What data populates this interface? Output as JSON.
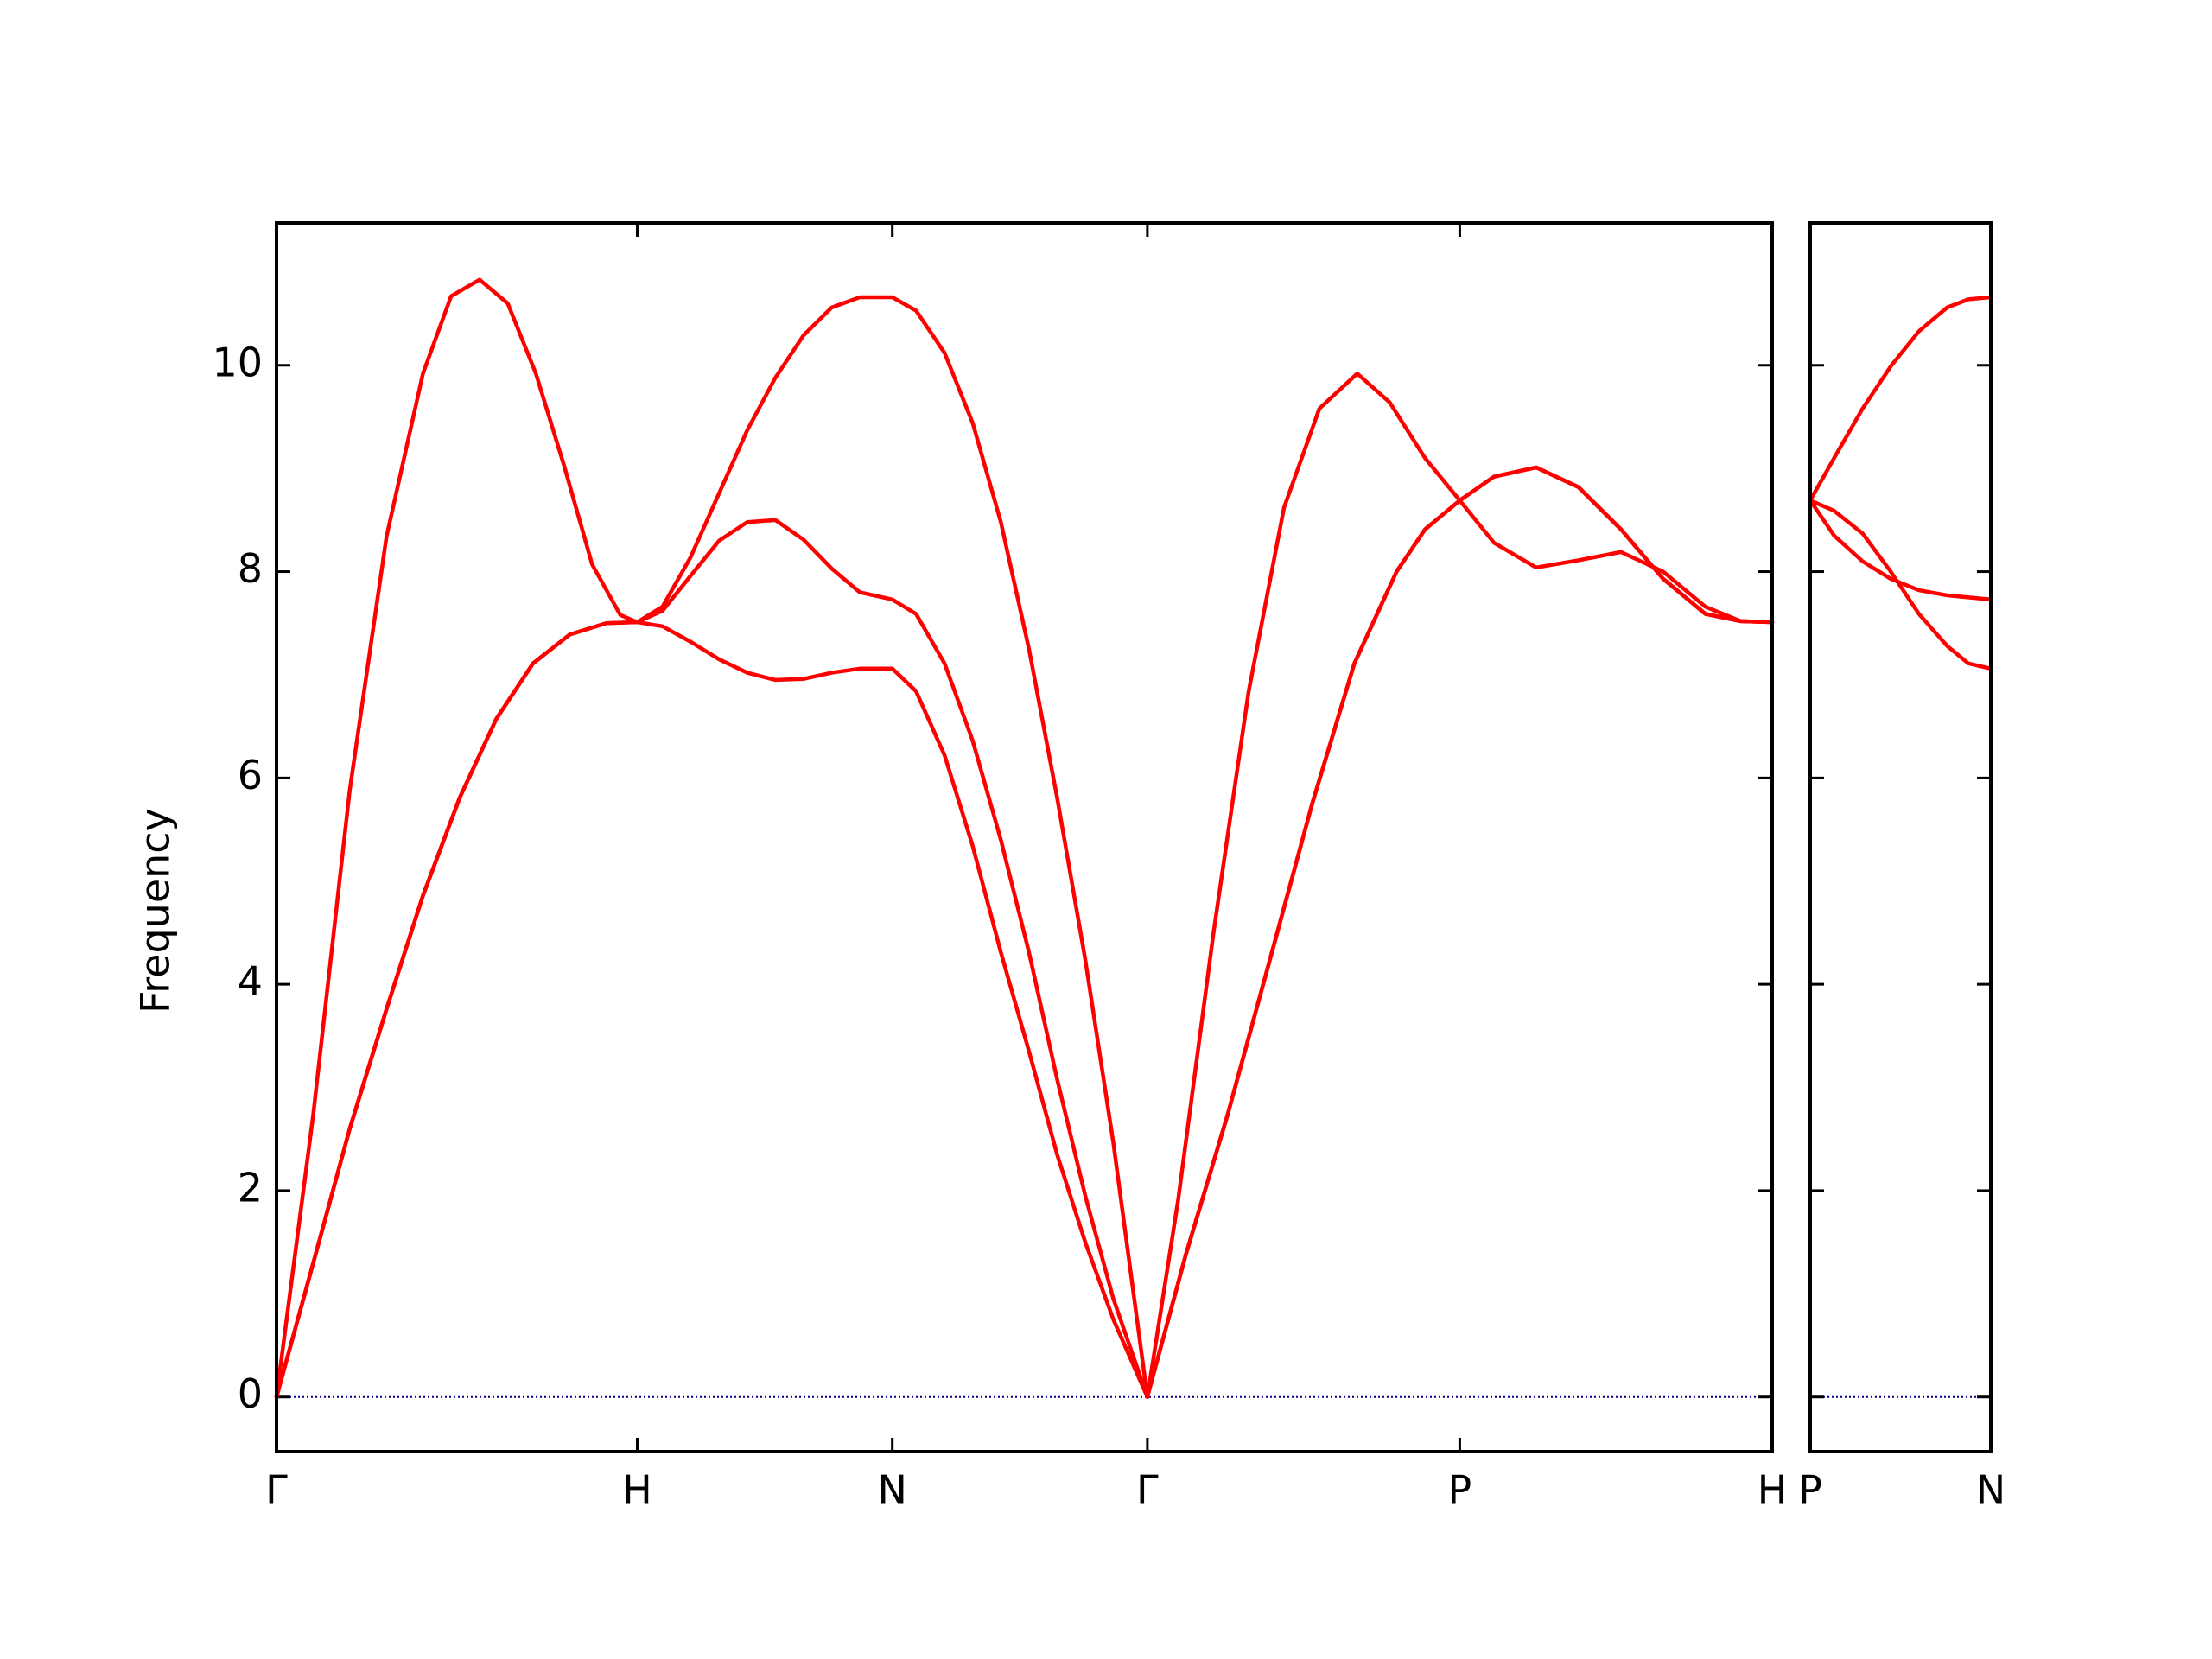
{
  "chart_data": [
    {
      "type": "line",
      "ylabel": "Frequency",
      "xlim": [
        0,
        4.1463
      ],
      "xticks": [
        {
          "value": 0,
          "label": "Γ"
        },
        {
          "value": 1,
          "label": "H"
        },
        {
          "value": 1.7071,
          "label": "N"
        },
        {
          "value": 2.4142,
          "label": "Γ"
        },
        {
          "value": 3.2802,
          "label": "P"
        },
        {
          "value": 4.1463,
          "label": "H"
        }
      ],
      "ylim": [
        -0.53,
        11.38
      ],
      "yticks": [
        0,
        2,
        4,
        6,
        8,
        10
      ],
      "ytick_labels": true,
      "hline": 0,
      "hline_color": "#00008b",
      "series": [
        {
          "color": "#ff0000",
          "x": [
            0,
            0.102,
            0.203,
            0.305,
            0.406,
            0.508,
            0.609,
            0.711,
            0.813,
            0.914,
            1,
            1.07,
            1.148,
            1.227,
            1.305,
            1.383,
            1.461,
            1.539,
            1.617,
            1.7071,
            1.773,
            1.852,
            1.93,
            2.008,
            2.086,
            2.164,
            2.242,
            2.32,
            2.4142,
            2.52,
            2.637,
            2.754,
            2.871,
            2.988,
            3.105,
            3.184,
            3.2802,
            3.375,
            3.492,
            3.609,
            3.727,
            3.844,
            3.961,
            4.059,
            4.1463
          ],
          "values": [
            0,
            1.3,
            2.6,
            3.76,
            4.86,
            5.81,
            6.57,
            7.11,
            7.39,
            7.5,
            7.51,
            7.47,
            7.32,
            7.15,
            7.02,
            6.95,
            6.96,
            7.02,
            7.06,
            7.06,
            6.84,
            6.22,
            5.34,
            4.31,
            3.35,
            2.35,
            1.5,
            0.75,
            0,
            1.37,
            2.74,
            4.24,
            5.75,
            7.11,
            8.0,
            8.41,
            8.69,
            8.92,
            9.01,
            8.82,
            8.41,
            7.93,
            7.59,
            7.52,
            7.51
          ]
        },
        {
          "color": "#ff0000",
          "x": [
            0,
            0.102,
            0.203,
            0.305,
            0.406,
            0.508,
            0.609,
            0.711,
            0.813,
            0.914,
            1,
            1.07,
            1.148,
            1.227,
            1.305,
            1.383,
            1.461,
            1.539,
            1.617,
            1.7071,
            1.773,
            1.852,
            1.93,
            2.008,
            2.086,
            2.164,
            2.242,
            2.32,
            2.4142,
            2.52,
            2.637,
            2.754,
            2.871,
            2.988,
            3.105,
            3.184,
            3.2802,
            3.375,
            3.492,
            3.609,
            3.727,
            3.844,
            3.961,
            4.059,
            4.1463
          ],
          "values": [
            0,
            1.3,
            2.6,
            3.76,
            4.86,
            5.81,
            6.57,
            7.11,
            7.39,
            7.5,
            7.51,
            7.62,
            7.96,
            8.3,
            8.48,
            8.5,
            8.31,
            8.03,
            7.8,
            7.73,
            7.59,
            7.11,
            6.36,
            5.4,
            4.31,
            3.08,
            1.95,
            0.95,
            0,
            1.37,
            2.74,
            4.24,
            5.75,
            7.11,
            8.0,
            8.41,
            8.69,
            8.92,
            9.01,
            8.82,
            8.41,
            7.93,
            7.59,
            7.52,
            7.51
          ]
        },
        {
          "color": "#ff0000",
          "x": [
            0,
            0.102,
            0.203,
            0.305,
            0.406,
            0.484,
            0.563,
            0.641,
            0.719,
            0.797,
            0.875,
            0.953,
            1,
            1.07,
            1.148,
            1.227,
            1.305,
            1.383,
            1.461,
            1.539,
            1.617,
            1.7071,
            1.773,
            1.852,
            1.93,
            2.008,
            2.086,
            2.164,
            2.242,
            2.32,
            2.4142,
            2.5,
            2.598,
            2.695,
            2.793,
            2.891,
            2.996,
            3.086,
            3.184,
            3.2802,
            3.375,
            3.492,
            3.609,
            3.727,
            3.844,
            3.961,
            4.059,
            4.1463
          ],
          "values": [
            0,
            2.74,
            5.88,
            8.34,
            9.92,
            10.67,
            10.83,
            10.6,
            9.92,
            9.03,
            8.07,
            7.58,
            7.51,
            7.66,
            8.14,
            8.76,
            9.37,
            9.88,
            10.29,
            10.56,
            10.66,
            10.66,
            10.53,
            10.12,
            9.44,
            8.48,
            7.25,
            5.81,
            4.24,
            2.46,
            0,
            1.92,
            4.51,
            6.84,
            8.62,
            9.58,
            9.92,
            9.64,
            9.1,
            8.69,
            8.28,
            8.04,
            8.11,
            8.19,
            8.0,
            7.66,
            7.52,
            7.51
          ]
        }
      ]
    },
    {
      "type": "line",
      "xlim": [
        0,
        0.5
      ],
      "xticks": [
        {
          "value": 0,
          "label": "P"
        },
        {
          "value": 0.5,
          "label": "N"
        }
      ],
      "ylim": [
        -0.53,
        11.38
      ],
      "yticks": [
        0,
        2,
        4,
        6,
        8,
        10
      ],
      "ytick_labels": false,
      "hline": 0,
      "hline_color": "#00008b",
      "series": [
        {
          "color": "#ff0000",
          "x": [
            0,
            0.066,
            0.145,
            0.223,
            0.301,
            0.379,
            0.438,
            0.5
          ],
          "values": [
            8.69,
            9.1,
            9.58,
            9.99,
            10.33,
            10.56,
            10.64,
            10.66
          ]
        },
        {
          "color": "#ff0000",
          "x": [
            0,
            0.066,
            0.145,
            0.223,
            0.301,
            0.379,
            0.5
          ],
          "values": [
            8.69,
            8.35,
            8.1,
            7.93,
            7.82,
            7.77,
            7.73
          ]
        },
        {
          "color": "#ff0000",
          "x": [
            0,
            0.066,
            0.145,
            0.223,
            0.301,
            0.379,
            0.438,
            0.5
          ],
          "values": [
            8.69,
            8.59,
            8.37,
            8.0,
            7.59,
            7.28,
            7.11,
            7.06
          ]
        }
      ]
    }
  ]
}
